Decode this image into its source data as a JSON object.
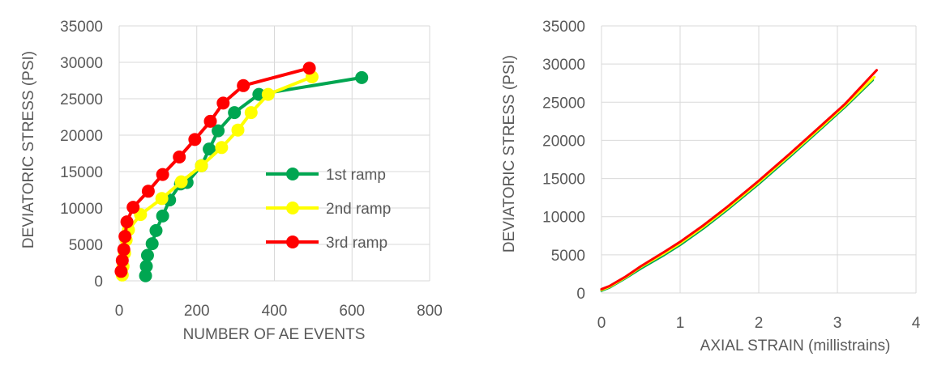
{
  "chart_data": [
    {
      "type": "line",
      "xlabel": "NUMBER OF AE EVENTS",
      "ylabel": "DEVIATORIC STRESS (PSI)",
      "xlim": [
        0,
        800
      ],
      "ylim": [
        0,
        35000
      ],
      "xticks": [
        "0",
        "200",
        "400",
        "600",
        "800"
      ],
      "yticks": [
        "0",
        "5000",
        "10000",
        "15000",
        "20000",
        "25000",
        "30000",
        "35000"
      ],
      "grid": true,
      "legend_position": "center-right",
      "series": [
        {
          "name": "1st ramp",
          "color": "#00a651",
          "x": [
            68,
            70,
            73,
            85,
            95,
            112,
            130,
            158,
            175,
            212,
            232,
            255,
            297,
            360,
            625
          ],
          "y": [
            700,
            2000,
            3500,
            5100,
            6900,
            8900,
            11100,
            13300,
            13500,
            15800,
            18100,
            20600,
            23100,
            25600,
            27900
          ]
        },
        {
          "name": "2nd ramp",
          "color": "#ffff00",
          "x": [
            8,
            10,
            14,
            18,
            24,
            55,
            110,
            160,
            212,
            264,
            306,
            340,
            384,
            497
          ],
          "y": [
            800,
            2000,
            3800,
            5600,
            7000,
            9100,
            11300,
            13600,
            15800,
            18300,
            20700,
            23100,
            25600,
            28000
          ]
        },
        {
          "name": "3rd ramp",
          "color": "#ff0000",
          "x": [
            5,
            8,
            12,
            15,
            20,
            36,
            75,
            112,
            155,
            195,
            235,
            268,
            320,
            490
          ],
          "y": [
            1300,
            2800,
            4300,
            6100,
            8100,
            10100,
            12300,
            14600,
            17000,
            19400,
            21900,
            24400,
            26800,
            29200
          ]
        }
      ]
    },
    {
      "type": "line",
      "xlabel": "AXIAL STRAIN (millistrains)",
      "ylabel": "DEVIATORIC STRESS (PSI)",
      "xlim": [
        0,
        4
      ],
      "ylim": [
        0,
        35000
      ],
      "xticks": [
        "0",
        "1",
        "2",
        "3",
        "4"
      ],
      "yticks": [
        "0",
        "5000",
        "10000",
        "15000",
        "20000",
        "25000",
        "30000",
        "35000"
      ],
      "grid": true,
      "series": [
        {
          "color": "#00a651",
          "x": [
            0,
            0.1,
            0.3,
            0.5,
            0.8,
            1.0,
            1.3,
            1.6,
            2.0,
            2.4,
            2.8,
            3.1,
            3.45
          ],
          "y": [
            300,
            700,
            1900,
            3200,
            5000,
            6300,
            8500,
            10900,
            14300,
            17900,
            21600,
            24400,
            27900
          ]
        },
        {
          "color": "#ffff00",
          "x": [
            0,
            0.1,
            0.3,
            0.5,
            0.8,
            1.0,
            1.3,
            1.6,
            2.0,
            2.4,
            2.8,
            3.1,
            3.47
          ],
          "y": [
            400,
            800,
            2000,
            3400,
            5200,
            6500,
            8700,
            11100,
            14500,
            18100,
            21800,
            24600,
            28300
          ]
        },
        {
          "color": "#ff0000",
          "x": [
            0,
            0.1,
            0.3,
            0.5,
            0.8,
            1.0,
            1.3,
            1.6,
            2.0,
            2.4,
            2.8,
            3.1,
            3.5
          ],
          "y": [
            500,
            900,
            2100,
            3500,
            5400,
            6700,
            8900,
            11300,
            14700,
            18300,
            22000,
            24800,
            29200
          ]
        }
      ]
    }
  ]
}
